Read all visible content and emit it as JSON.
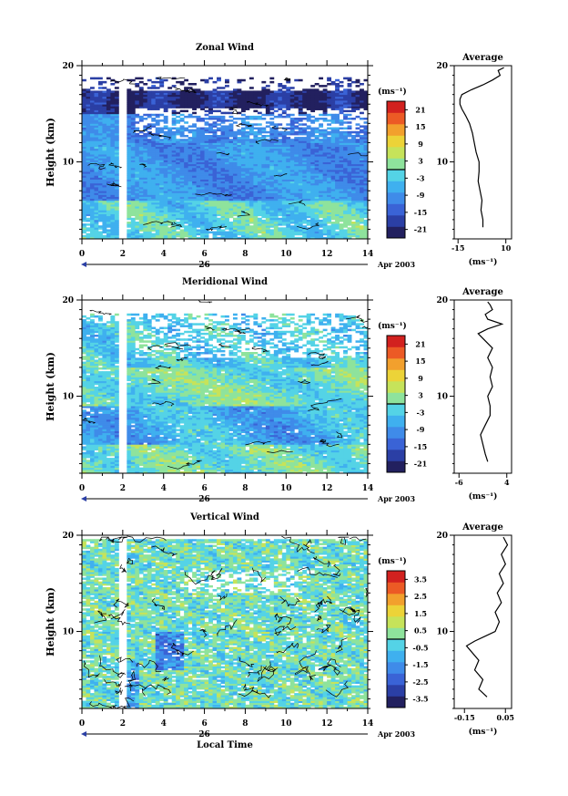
{
  "chart_data": [
    {
      "type": "heatmap",
      "title": "Zonal Wind",
      "ylabel": "Height (km)",
      "ylim": [
        2,
        20
      ],
      "xlim": [
        0,
        14
      ],
      "x_ticks": [
        "0",
        "2",
        "4",
        "6",
        "8",
        "10",
        "12",
        "14"
      ],
      "y_ticks": [
        "10",
        "20"
      ],
      "date_tick": "26",
      "date_suffix": "Apr 2003",
      "unit": "(ms⁻¹)",
      "colorbar_ticks": [
        "21",
        "15",
        "9",
        "3",
        "-3",
        "-9",
        "-15",
        "-21"
      ],
      "colorbar_range": [
        -24,
        24
      ],
      "mean_profile": {
        "title": "Average",
        "xlim": [
          -17,
          13
        ],
        "x_ticks": [
          "-15",
          "10"
        ],
        "xlabel": "(ms⁻¹)",
        "height": [
          3.2,
          4,
          5,
          6,
          7,
          8,
          9,
          10,
          11,
          12,
          13,
          14,
          14.8,
          15.5,
          16,
          16.5,
          17,
          17.5,
          18,
          18.5,
          19,
          19.5,
          19.8
        ],
        "values": [
          -2,
          -2,
          -3,
          -2.5,
          -3.5,
          -4.5,
          -4,
          -4,
          -5.5,
          -6.5,
          -7.5,
          -9,
          -11,
          -13,
          -14,
          -14,
          -13,
          -8,
          -2,
          3,
          7,
          6,
          9
        ]
      }
    },
    {
      "type": "heatmap",
      "title": "Meridional Wind",
      "ylabel": "Height (km)",
      "ylim": [
        2,
        20
      ],
      "xlim": [
        0,
        14
      ],
      "x_ticks": [
        "0",
        "2",
        "4",
        "6",
        "8",
        "10",
        "12",
        "14"
      ],
      "y_ticks": [
        "10",
        "20"
      ],
      "date_tick": "26",
      "date_suffix": "Apr 2003",
      "unit": "(ms⁻¹)",
      "colorbar_ticks": [
        "21",
        "15",
        "9",
        "3",
        "-3",
        "-9",
        "-15",
        "-21"
      ],
      "colorbar_range": [
        -24,
        24
      ],
      "mean_profile": {
        "title": "Average",
        "xlim": [
          -7,
          5
        ],
        "x_ticks": [
          "-6",
          "4"
        ],
        "xlabel": "(ms⁻¹)",
        "height": [
          3.2,
          4,
          5,
          6,
          7,
          8,
          9,
          10,
          11,
          12,
          13,
          14,
          15,
          16,
          16.5,
          17,
          17.5,
          18,
          18.5,
          19,
          19.5,
          19.8
        ],
        "values": [
          0,
          -0.5,
          -1,
          -1.5,
          -0.5,
          0.5,
          0.5,
          0,
          1,
          0.5,
          1,
          0,
          1,
          -1,
          -2,
          0,
          3,
          0,
          -0.5,
          1,
          0.5,
          0
        ]
      }
    },
    {
      "type": "heatmap",
      "title": "Vertical Wind",
      "ylabel": "Height (km)",
      "xlabel": "Local Time",
      "ylim": [
        2,
        20
      ],
      "xlim": [
        0,
        14
      ],
      "x_ticks": [
        "0",
        "2",
        "4",
        "6",
        "8",
        "10",
        "12",
        "14"
      ],
      "y_ticks": [
        "10",
        "20"
      ],
      "date_tick": "26",
      "date_suffix": "Apr 2003",
      "unit": "(ms⁻¹)",
      "colorbar_ticks": [
        "3.5",
        "2.5",
        "1.5",
        "0.5",
        "-0.5",
        "-1.5",
        "-2.5",
        "-3.5"
      ],
      "colorbar_range": [
        -4,
        4
      ],
      "mean_profile": {
        "title": "Average",
        "xlim": [
          -0.2,
          0.08
        ],
        "x_ticks": [
          "-0.15",
          "0.05"
        ],
        "xlabel": "(ms⁻¹)",
        "height": [
          3.2,
          4,
          5,
          6,
          7,
          8,
          8.5,
          9,
          9.5,
          10,
          11,
          12,
          13,
          14,
          15,
          16,
          17,
          18,
          19,
          19.8
        ],
        "values": [
          -0.04,
          -0.08,
          -0.06,
          -0.1,
          -0.08,
          -0.12,
          -0.14,
          -0.1,
          -0.05,
          0,
          0.02,
          0.0,
          0.03,
          0.01,
          0.04,
          0.02,
          0.05,
          0.03,
          0.06,
          0.04
        ]
      }
    }
  ]
}
